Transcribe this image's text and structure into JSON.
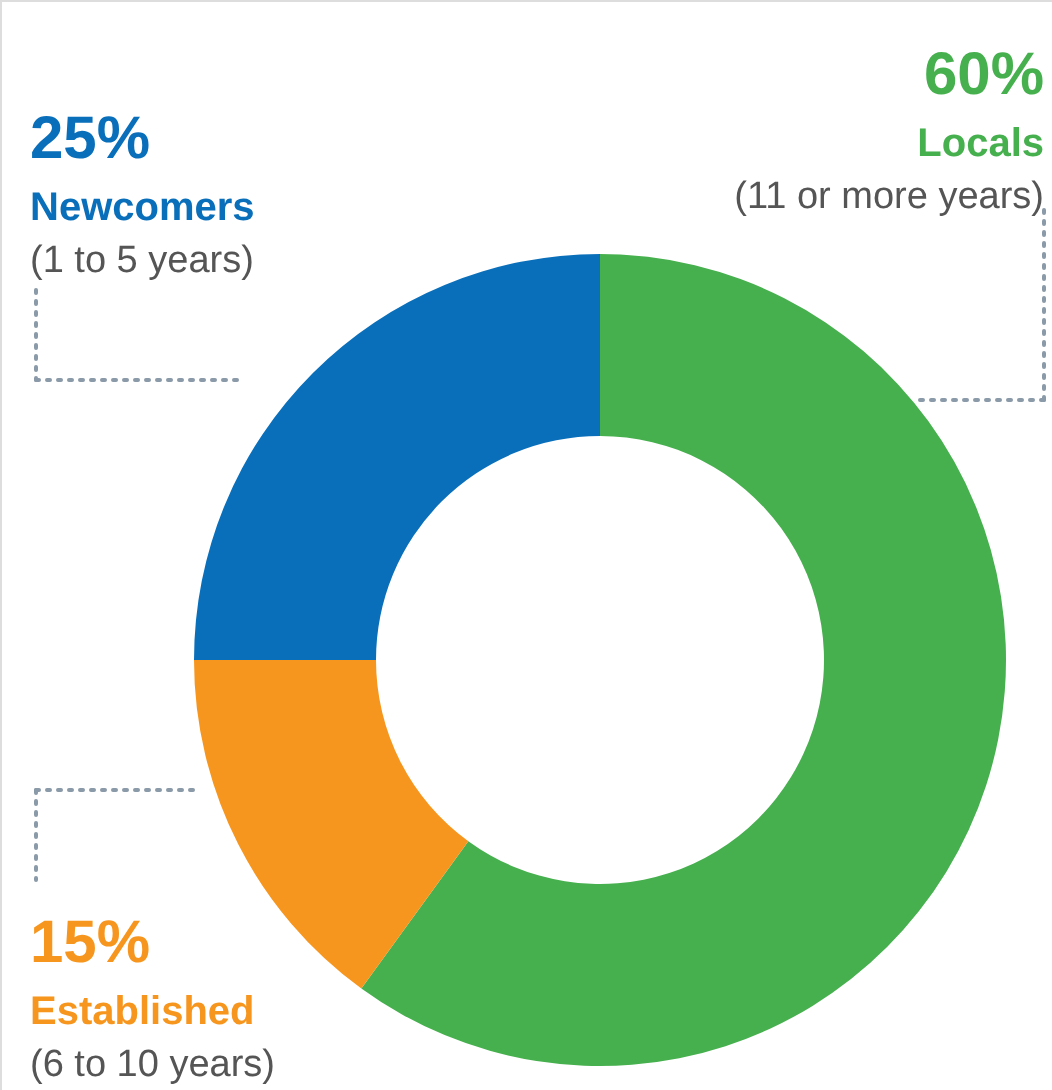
{
  "chart_data": {
    "type": "donut",
    "categories": [
      "Locals",
      "Established",
      "Newcomers"
    ],
    "values": [
      60,
      15,
      25
    ],
    "value_labels": [
      "60%",
      "15%",
      "25%"
    ],
    "colors": [
      "#46b04e",
      "#f7961e",
      "#0a6fba"
    ],
    "annotations": [
      "(11 or more years)",
      "(6 to 10 years)",
      "(1 to 5 years)"
    ]
  }
}
